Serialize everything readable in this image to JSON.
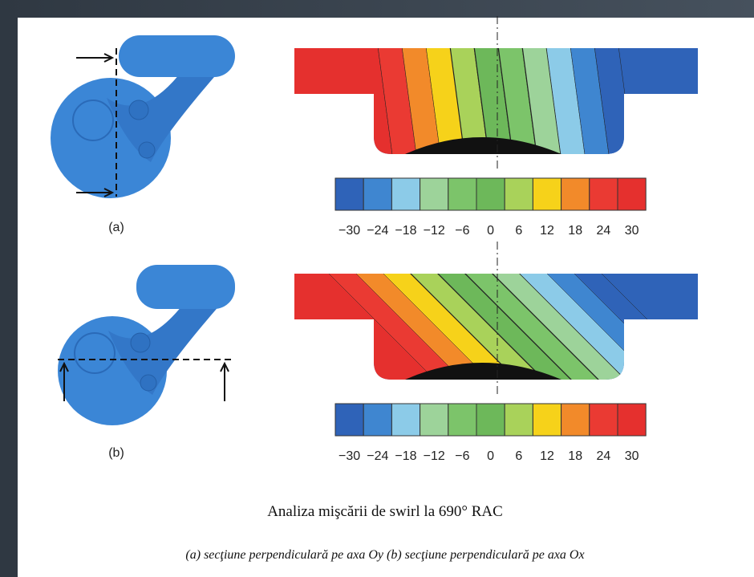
{
  "figure": {
    "panels": [
      {
        "label": "(a)",
        "colorbar": {
          "labels": [
            "−30",
            "−24",
            "−18",
            "−12",
            "−6",
            "0",
            "6",
            "12",
            "18",
            "24",
            "30"
          ]
        }
      },
      {
        "label": "(b)",
        "colorbar": {
          "labels": [
            "−30",
            "−24",
            "−18",
            "−12",
            "−6",
            "0",
            "6",
            "12",
            "18",
            "24",
            "30"
          ]
        }
      }
    ]
  },
  "caption": {
    "title": "Analiza mişcării de swirl la 690° RAC",
    "subtitle": "(a) secţiune perpendiculară pe axa Oy (b) secţiune perpendiculară pe axa Ox"
  }
}
